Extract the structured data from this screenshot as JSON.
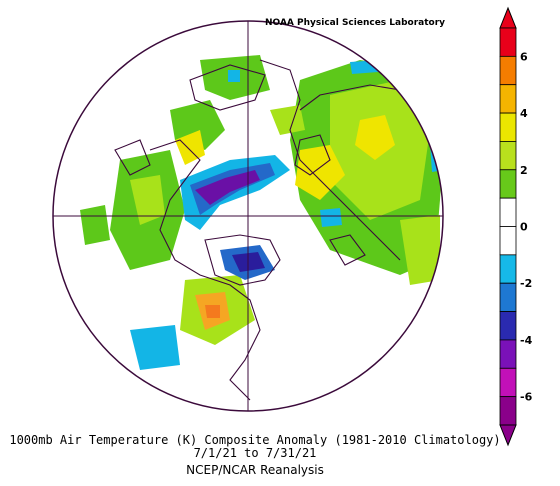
{
  "credit": "NOAA Physical Sciences Laboratory",
  "caption": {
    "line1": "1000mb Air Temperature (K) Composite Anomaly (1981-2010 Climatology)",
    "line2": "7/1/21  to 7/31/21",
    "line3": "NCEP/NCAR Reanalysis"
  },
  "colorbar": {
    "labels": [
      "6",
      "4",
      "2",
      "0",
      "-2",
      "-4",
      "-6"
    ],
    "colors": [
      "#e8001a",
      "#f57d00",
      "#f5b400",
      "#ebe600",
      "#b9e01d",
      "#67c91a",
      "#ffffff",
      "#ffffff",
      "#16b9e8",
      "#1e78d2",
      "#2a2ab0",
      "#7a11b8",
      "#c210b8",
      "#8a008a"
    ]
  },
  "map": {
    "projection": "north polar stereographic",
    "colors": {
      "light_green": "#a8e21a",
      "green": "#5dc81a",
      "yellow": "#efe500",
      "orange": "#f5a623",
      "deep_orange": "#f47a1e",
      "cyan": "#13b5e6",
      "blue": "#2469c9",
      "indigo": "#2a1d9c",
      "violet": "#6a10a6",
      "magenta": "#b413b5",
      "outline": "#3b0a3b"
    }
  }
}
